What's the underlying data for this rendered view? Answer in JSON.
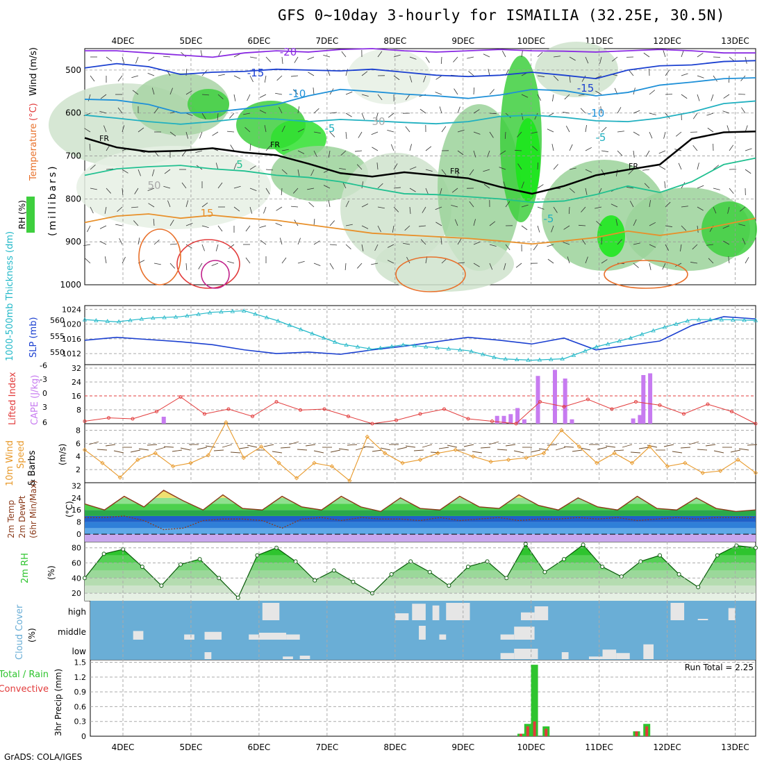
{
  "title": "GFS 0~10day 3-hourly for ISMAILIA (32.25E, 30.5N)",
  "credit": "GrADS: COLA/IGES",
  "days": [
    "4DEC",
    "5DEC",
    "6DEC",
    "7DEC",
    "8DEC",
    "9DEC",
    "10DEC",
    "11DEC",
    "12DEC",
    "13DEC"
  ],
  "colors": {
    "rh": "#3ecf3e",
    "temp_warm": "#e8702a",
    "temp_cold": "#7a1fa0",
    "slp": "#1a3fd0",
    "thickness": "#22b8c8",
    "cape": "#c77bf0",
    "lifted_index": "#e23b3b",
    "wind10m": "#e89a2c",
    "rh2m": "#2ec42e",
    "cloud_bg": "#6aaed6",
    "cloud_fill": "#e6e6e6",
    "precip_total": "#2ec42e",
    "precip_conv": "#e23b3b"
  },
  "chart_data": [
    {
      "type": "heatmap",
      "name": "upper-air",
      "ylabel_parts": [
        "Temperature",
        "(°C)",
        "Wind",
        "(m/s)"
      ],
      "rh_label": "RH (%)",
      "units_label": "(millibars)",
      "yticks": [
        500,
        600,
        700,
        800,
        900,
        1000
      ],
      "ylim": [
        450,
        1000
      ],
      "contour_labels": [
        "-20",
        "-15",
        "-10",
        "-5",
        "5",
        "15",
        "-15",
        "-10",
        "-5",
        "-5",
        "FR",
        "FR",
        "FR",
        "FR",
        "30",
        "50"
      ],
      "isotherms": [
        {
          "label": "-20",
          "y": [
            455,
            455,
            460,
            465,
            470,
            460,
            455,
            458,
            452,
            450,
            455,
            458,
            455,
            452,
            455,
            456,
            458,
            455,
            452,
            455,
            460,
            460
          ]
        },
        {
          "label": "-15",
          "y": [
            495,
            485,
            492,
            510,
            505,
            503,
            498,
            500,
            502,
            498,
            505,
            512,
            515,
            512,
            505,
            512,
            520,
            500,
            490,
            488,
            480,
            478
          ]
        },
        {
          "label": "-10",
          "y": [
            568,
            570,
            580,
            600,
            598,
            590,
            580,
            560,
            545,
            550,
            556,
            560,
            566,
            558,
            545,
            548,
            560,
            552,
            535,
            528,
            520,
            518
          ]
        },
        {
          "label": "-5",
          "y": [
            605,
            612,
            620,
            626,
            620,
            612,
            614,
            620,
            615,
            618,
            622,
            625,
            620,
            608,
            605,
            610,
            618,
            620,
            612,
            598,
            578,
            572
          ]
        },
        {
          "label": "FR",
          "y": [
            658,
            680,
            690,
            688,
            682,
            692,
            698,
            718,
            740,
            748,
            738,
            745,
            752,
            772,
            788,
            770,
            745,
            732,
            720,
            660,
            645,
            643
          ]
        },
        {
          "label": "5",
          "y": [
            745,
            730,
            725,
            722,
            730,
            735,
            745,
            750,
            760,
            775,
            788,
            790,
            795,
            800,
            808,
            805,
            790,
            770,
            785,
            760,
            720,
            705
          ]
        },
        {
          "label": "15",
          "y": [
            855,
            840,
            835,
            845,
            838,
            845,
            850,
            860,
            870,
            880,
            884,
            888,
            892,
            898,
            905,
            898,
            890,
            875,
            885,
            875,
            860,
            845
          ]
        }
      ]
    },
    {
      "type": "line",
      "name": "slp-thickness",
      "left_label": "1000-500mb Thickness (dm)",
      "right_label": "SLP (mb)",
      "thickness_ticks": [
        550,
        555,
        560
      ],
      "slp_ticks": [
        1012,
        1016,
        1020,
        1024
      ],
      "slp_ylim": [
        1009,
        1025
      ],
      "slp": [
        1015.6,
        1016.4,
        1015.8,
        1015.2,
        1014.4,
        1013.0,
        1012.0,
        1012.4,
        1011.8,
        1013.0,
        1014.0,
        1015.2,
        1016.4,
        1015.6,
        1014.6,
        1016.2,
        1013.0,
        1014.2,
        1015.4,
        1019.6,
        1022.0,
        1021.4
      ],
      "thickness_y": [
        1021.2,
        1020.6,
        1021.6,
        1022.0,
        1023.2,
        1023.6,
        1021.0,
        1017.8,
        1014.6,
        1013.2,
        1014.4,
        1013.6,
        1012.8,
        1010.6,
        1010.2,
        1010.6,
        1013.8,
        1016.0,
        1018.8,
        1021.2,
        1021.2,
        1021.0
      ]
    },
    {
      "type": "bar",
      "name": "cape-lifted-index",
      "left_label": "Lifted Index",
      "right_label": "CAPE (J/kg)",
      "li_ticks": [
        "-6",
        "-3",
        "0",
        "3",
        "6"
      ],
      "cape_ticks": [
        "8",
        "16",
        "24",
        "32"
      ],
      "cape_ylim": [
        0,
        34
      ],
      "cape_bars": [
        [
          4.6,
          4
        ],
        [
          9.5,
          4.5
        ],
        [
          9.6,
          4.5
        ],
        [
          9.7,
          5.5
        ],
        [
          9.8,
          9
        ],
        [
          9.9,
          2.5
        ],
        [
          10.1,
          27.5
        ],
        [
          10.35,
          31
        ],
        [
          10.5,
          26
        ],
        [
          10.6,
          2.5
        ],
        [
          11.5,
          3
        ],
        [
          11.6,
          5
        ],
        [
          11.65,
          28
        ],
        [
          11.75,
          29
        ]
      ],
      "lifted_index": [
        5.5,
        4.8,
        5.0,
        3.5,
        0.5,
        4.0,
        3.0,
        4.5,
        1.5,
        3.2,
        3.0,
        4.5,
        6.0,
        5.3,
        4.0,
        3.0,
        5.0,
        5.5,
        6.0,
        1.5,
        2.5,
        1.0,
        3.0,
        1.5,
        2.2,
        4.0,
        2.0,
        3.5,
        6.0
      ]
    },
    {
      "type": "line",
      "name": "wind-10m",
      "label_parts": [
        "10m Wind",
        "Speed",
        "& Barbs"
      ],
      "unit": "(m/s)",
      "yticks": [
        2,
        4,
        6,
        8
      ],
      "ylim": [
        0,
        9
      ],
      "speed": [
        5.0,
        3.0,
        0.8,
        3.5,
        4.5,
        2.5,
        3.0,
        4.2,
        9.2,
        3.8,
        5.5,
        3.0,
        0.7,
        3.0,
        2.5,
        0.3,
        7.0,
        4.5,
        3.0,
        3.5,
        4.5,
        5.0,
        4.0,
        3.2,
        3.5,
        3.8,
        4.5,
        8.0,
        5.5,
        3.0,
        4.5,
        3.0,
        5.5,
        2.5,
        3.0,
        1.5,
        1.8,
        3.5,
        1.5
      ]
    },
    {
      "type": "area",
      "name": "temperature-2m",
      "label_parts": [
        "2m Temp",
        "2m DewPt",
        "(6hr Min/Max)"
      ],
      "unit": "(°C)",
      "yticks": [
        0,
        8,
        16,
        24,
        32
      ],
      "ylim": [
        -5,
        34
      ],
      "temp": [
        20,
        16,
        25,
        18,
        29,
        22,
        16,
        26,
        17,
        16,
        25,
        18,
        16,
        25,
        18,
        15,
        24,
        17,
        16,
        25,
        18,
        17,
        26,
        19,
        16,
        24,
        18,
        16,
        25,
        17,
        16,
        24,
        17,
        15,
        16
      ],
      "dewpt": [
        11,
        11,
        12,
        9,
        3,
        4,
        9,
        10,
        10,
        9,
        4,
        10,
        11,
        9,
        11,
        10,
        10,
        9,
        11,
        9,
        10,
        11,
        9,
        10,
        10,
        11,
        10,
        11,
        9,
        10,
        11,
        10,
        11,
        11,
        11
      ]
    },
    {
      "type": "area",
      "name": "rh-2m",
      "label": "2m RH",
      "unit": "(%)",
      "yticks": [
        20,
        40,
        60,
        80
      ],
      "ylim": [
        10,
        88
      ],
      "rh": [
        40,
        72,
        78,
        55,
        30,
        58,
        65,
        40,
        14,
        70,
        80,
        62,
        37,
        50,
        35,
        20,
        45,
        62,
        48,
        30,
        55,
        62,
        40,
        85,
        48,
        65,
        84,
        55,
        42,
        62,
        70,
        45,
        28,
        70,
        83,
        80
      ]
    },
    {
      "type": "heatmap",
      "name": "cloud-cover",
      "label": "Cloud Cover",
      "unit": "(%)",
      "levels": [
        "high",
        "middle",
        "low"
      ],
      "high": [
        [
          6.05,
          6.3,
          100
        ],
        [
          8.0,
          8.2,
          40
        ],
        [
          8.25,
          8.45,
          95
        ],
        [
          8.55,
          8.65,
          85
        ],
        [
          8.75,
          9.1,
          100
        ],
        [
          9.85,
          10.05,
          45
        ],
        [
          10.05,
          10.25,
          80
        ],
        [
          12.05,
          12.25,
          100
        ],
        [
          12.45,
          12.6,
          8
        ],
        [
          12.9,
          13.0,
          70
        ]
      ],
      "middle": [
        [
          4.15,
          4.3,
          50
        ],
        [
          4.9,
          5.05,
          30
        ],
        [
          5.2,
          5.45,
          45
        ],
        [
          5.85,
          6.0,
          30
        ],
        [
          6.0,
          6.4,
          40
        ],
        [
          6.4,
          6.6,
          30
        ],
        [
          8.35,
          8.45,
          80
        ],
        [
          8.65,
          8.75,
          30
        ],
        [
          9.55,
          9.75,
          30
        ],
        [
          9.75,
          10.05,
          75
        ]
      ],
      "low": [
        [
          5.2,
          5.3,
          40
        ],
        [
          6.35,
          6.5,
          15
        ],
        [
          6.6,
          6.75,
          20
        ],
        [
          9.55,
          9.75,
          35
        ],
        [
          9.75,
          10.1,
          60
        ],
        [
          10.45,
          10.55,
          40
        ],
        [
          10.85,
          11.05,
          15
        ],
        [
          11.05,
          11.25,
          55
        ],
        [
          11.25,
          11.45,
          35
        ],
        [
          11.65,
          11.8,
          85
        ]
      ]
    },
    {
      "type": "bar",
      "name": "precip-3hr",
      "label_parts": [
        "Total / Rain",
        "Convective"
      ],
      "unit": "3hr Precip (mm)",
      "run_total_label": "Run Total = 2.25",
      "yticks": [
        "0",
        "0.3",
        "0.6",
        "0.9",
        "1.2",
        "1.5"
      ],
      "ylim": [
        0,
        1.55
      ],
      "bars": [
        {
          "x": 9.85,
          "total": 0.05,
          "conv": 0.05
        },
        {
          "x": 9.95,
          "total": 0.25,
          "conv": 0.2
        },
        {
          "x": 10.05,
          "total": 1.45,
          "conv": 0.3
        },
        {
          "x": 10.22,
          "total": 0.2,
          "conv": 0.15
        },
        {
          "x": 11.55,
          "total": 0.1,
          "conv": 0.1
        },
        {
          "x": 11.7,
          "total": 0.25,
          "conv": 0.2
        }
      ]
    }
  ]
}
